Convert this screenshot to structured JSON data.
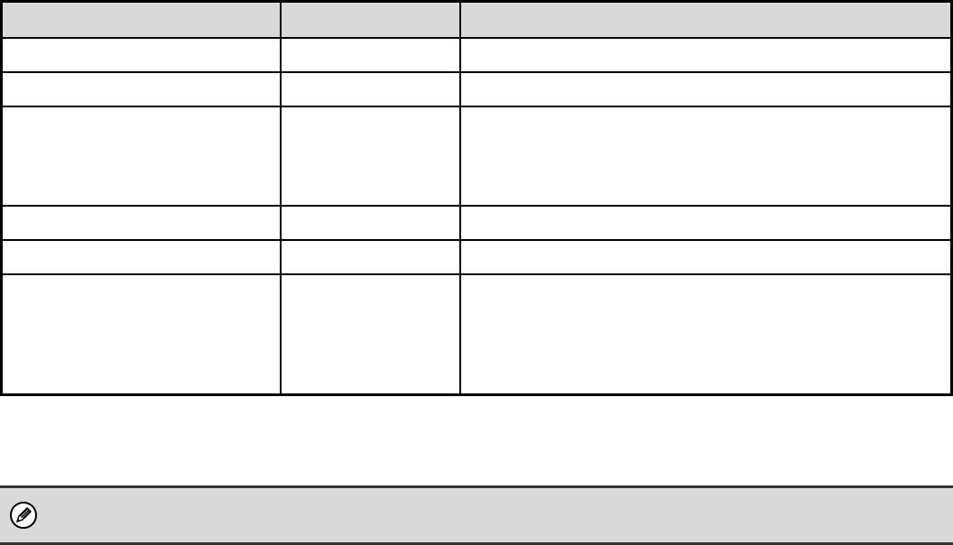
{
  "colors": {
    "header_fill": "#d9d9d9",
    "note_fill": "#d9d9d9"
  },
  "note": {
    "icon": "pencil-icon"
  }
}
